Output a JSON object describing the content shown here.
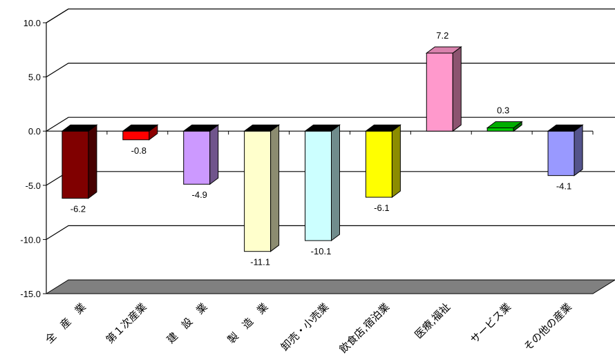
{
  "chart_data": {
    "type": "bar",
    "categories": [
      "全　産　業",
      "第１次産業",
      "建　設　業",
      "製　造　業",
      "卸売・小売業",
      "飲食店,宿泊業",
      "医療,福祉",
      "サービス業",
      "その他の産業"
    ],
    "values": [
      -6.2,
      -0.8,
      -4.9,
      -11.1,
      -10.1,
      -6.1,
      7.2,
      0.3,
      -4.1
    ],
    "value_labels": [
      "-6.2",
      "-0.8",
      "-4.9",
      "-11.1",
      "-10.1",
      "-6.1",
      "7.2",
      "0.3",
      "-4.1"
    ],
    "colors": [
      "#800000",
      "#ff0000",
      "#cc99ff",
      "#ffffcc",
      "#ccffff",
      "#ffff00",
      "#ff99cc",
      "#00cc00",
      "#9999ff"
    ],
    "yticks": [
      10.0,
      5.0,
      0.0,
      -5.0,
      -10.0,
      -15.0
    ],
    "ytick_labels": [
      "10.0",
      "5.0",
      "0.0",
      "-5.0",
      "-10.0",
      "-15.0"
    ],
    "ylim": [
      -15,
      10
    ],
    "grid": true,
    "floor_color": "#808080",
    "title": "",
    "xlabel": "",
    "ylabel": ""
  }
}
